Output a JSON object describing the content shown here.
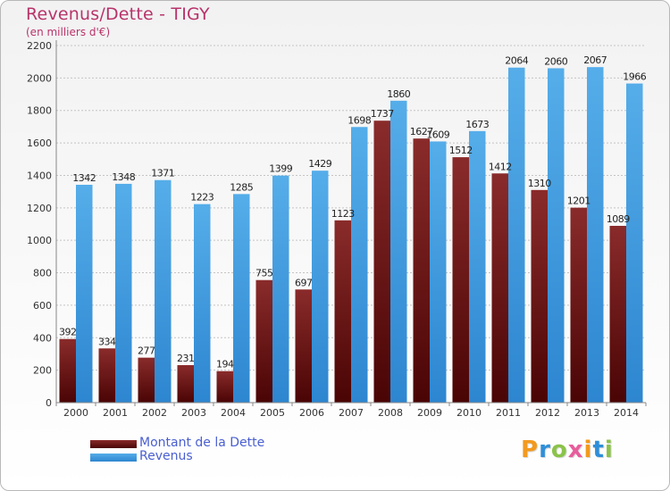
{
  "chart_data": {
    "type": "bar",
    "title": "Revenus/Dette - TIGY",
    "subtitle": "(en milliers d'€)",
    "categories": [
      "2000",
      "2001",
      "2002",
      "2003",
      "2004",
      "2005",
      "2006",
      "2007",
      "2008",
      "2009",
      "2010",
      "2011",
      "2012",
      "2013",
      "2014"
    ],
    "series": [
      {
        "name": "Montant de la Dette",
        "values": [
          392,
          334,
          277,
          231,
          194,
          755,
          697,
          1123,
          1737,
          1627,
          1512,
          1412,
          1310,
          1201,
          1089
        ],
        "labels": [
          "392",
          "334",
          "277",
          "231",
          "194",
          "755",
          "697",
          "1123",
          "1737",
          "1627",
          "1512",
          "1412",
          "1310",
          "1201",
          "1089"
        ],
        "color": "#7a1f1f"
      },
      {
        "name": "Revenus",
        "values": [
          1342,
          1348,
          1371,
          1223,
          1285,
          1399,
          1429,
          1698,
          1860,
          1609,
          1673,
          2064,
          2060,
          2067,
          1966
        ],
        "labels": [
          "1342",
          "1348",
          "1371",
          "1223",
          "1285",
          "1399",
          "1429",
          "1698",
          "1860",
          "1609",
          "1673",
          "2064",
          "2060",
          "2067",
          "1966"
        ],
        "color": "#4aa3e6"
      }
    ],
    "yticks": [
      "0",
      "200",
      "400",
      "600",
      "800",
      "1000",
      "1200",
      "1400",
      "1600",
      "1800",
      "2000",
      "2200"
    ],
    "ylim": [
      0,
      2200
    ],
    "grid": true,
    "legend_position": "bottom-left"
  },
  "logo": {
    "letters": [
      "P",
      "r",
      "o",
      "x",
      "i",
      "t",
      "i"
    ],
    "colors": [
      "#f29a1f",
      "#2f8fd8",
      "#8bc34a",
      "#e85d9c",
      "#f29a1f",
      "#2f8fd8",
      "#8bc34a"
    ]
  }
}
